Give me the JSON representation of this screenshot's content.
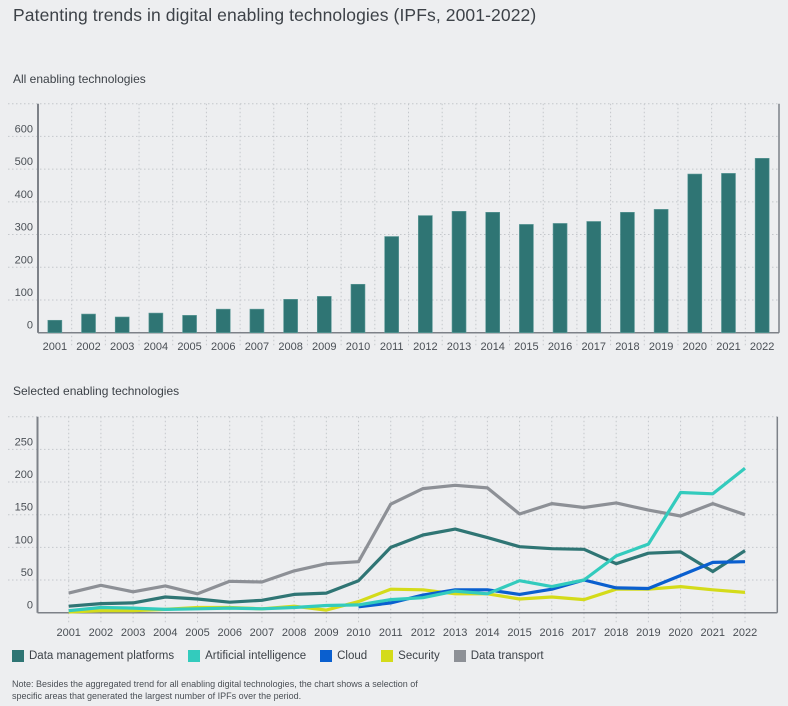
{
  "title": "Patenting trends in digital enabling technologies (IPFs, 2001-2022)",
  "note": "Note: Besides the aggregated trend for all enabling digital technologies, the chart shows a selection of specific areas that generated the largest number of IPFs over the period.",
  "chart_data": [
    {
      "type": "bar",
      "title": "All enabling technologies",
      "xlabel": "",
      "ylabel": "",
      "categories": [
        "2001",
        "2002",
        "2003",
        "2004",
        "2005",
        "2006",
        "2007",
        "2008",
        "2009",
        "2010",
        "2011",
        "2012",
        "2013",
        "2014",
        "2015",
        "2016",
        "2017",
        "2018",
        "2019",
        "2020",
        "2021",
        "2022"
      ],
      "values": [
        38,
        57,
        48,
        60,
        53,
        72,
        72,
        102,
        111,
        148,
        294,
        358,
        371,
        368,
        331,
        334,
        340,
        368,
        377,
        485,
        487,
        533
      ],
      "ylim": [
        0,
        700
      ],
      "yticks": [
        0,
        100,
        200,
        300,
        400,
        500,
        600
      ],
      "grid": true,
      "color": "#2f7574"
    },
    {
      "type": "line",
      "title": "Selected enabling technologies",
      "xlabel": "",
      "ylabel": "",
      "x": [
        "2001",
        "2002",
        "2003",
        "2004",
        "2005",
        "2006",
        "2007",
        "2008",
        "2009",
        "2010",
        "2011",
        "2012",
        "2013",
        "2014",
        "2015",
        "2016",
        "2017",
        "2018",
        "2019",
        "2020",
        "2021",
        "2022"
      ],
      "ylim": [
        0,
        300
      ],
      "yticks": [
        0,
        50,
        100,
        150,
        200,
        250
      ],
      "grid": true,
      "legend_position": "bottom",
      "series": [
        {
          "name": "Data transport",
          "color": "#8d9096",
          "values": [
            30,
            42,
            32,
            41,
            29,
            48,
            47,
            64,
            75,
            78,
            166,
            190,
            195,
            191,
            151,
            167,
            161,
            168,
            157,
            148,
            167,
            150
          ]
        },
        {
          "name": "Data management platforms",
          "color": "#2f7574",
          "values": [
            10,
            14,
            15,
            24,
            21,
            16,
            19,
            28,
            30,
            49,
            100,
            119,
            128,
            115,
            101,
            98,
            97,
            75,
            91,
            93,
            63,
            95
          ]
        },
        {
          "name": "Security",
          "color": "#d4db1a",
          "values": [
            1,
            3,
            3,
            5,
            8,
            8,
            6,
            10,
            4,
            17,
            36,
            35,
            29,
            29,
            21,
            24,
            20,
            36,
            36,
            40,
            35,
            31
          ]
        },
        {
          "name": "Cloud",
          "color": "#0a5fcf",
          "values": [
            null,
            null,
            null,
            null,
            null,
            null,
            null,
            null,
            null,
            9,
            15,
            27,
            35,
            35,
            28,
            36,
            50,
            38,
            37,
            57,
            77,
            78
          ]
        },
        {
          "name": "Artificial intelligence",
          "color": "#33cbbd",
          "values": [
            3,
            8,
            7,
            5,
            6,
            7,
            6,
            8,
            11,
            12,
            20,
            23,
            33,
            29,
            49,
            40,
            50,
            87,
            105,
            184,
            182,
            221
          ]
        }
      ],
      "legend": [
        {
          "name": "Data management platforms",
          "color": "#2f7574"
        },
        {
          "name": "Artificial intelligence",
          "color": "#33cbbd"
        },
        {
          "name": "Cloud",
          "color": "#0a5fcf"
        },
        {
          "name": "Security",
          "color": "#d4db1a"
        },
        {
          "name": "Data transport",
          "color": "#8d9096"
        }
      ]
    }
  ]
}
